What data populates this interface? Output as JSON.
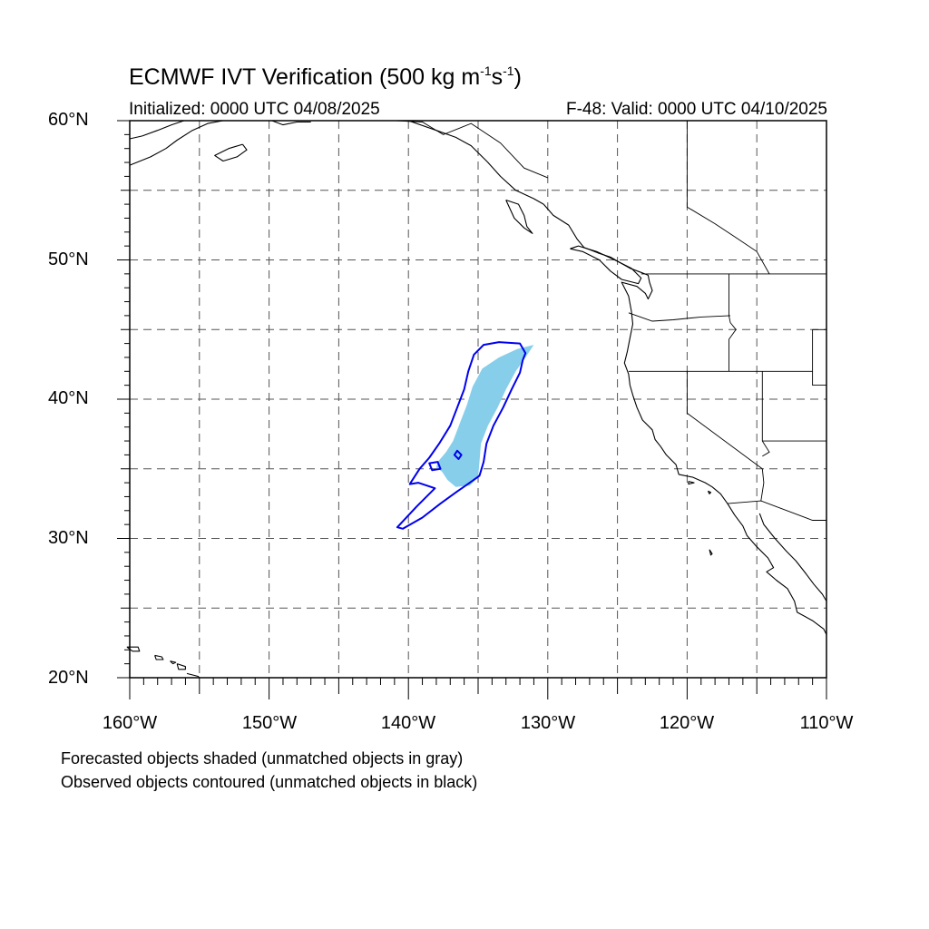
{
  "figure": {
    "title_main": "ECMWF IVT Verification (500 kg m",
    "title_exp1": "-1",
    "title_mid": "s",
    "title_exp2": "-1",
    "title_end": ")",
    "initialized": "Initialized: 0000 UTC 04/08/2025",
    "valid": "F-48: Valid: 0000 UTC 04/10/2025"
  },
  "map": {
    "lon_range": [
      -160,
      -110
    ],
    "lat_range": [
      20,
      60
    ],
    "grid_step_deg": 5,
    "grid_style": "dashed",
    "lat_labels": [
      "60°N",
      "50°N",
      "40°N",
      "30°N",
      "20°N"
    ],
    "lon_labels": [
      "160°W",
      "150°W",
      "140°W",
      "130°W",
      "120°W",
      "110°W"
    ],
    "forecast_fill_color": "#87ceeb",
    "observed_contour_color": "#0000ee",
    "coastline_color": "#000000"
  },
  "objects": {
    "forecast_shaded": [
      [
        [
          -131.0,
          43.9
        ],
        [
          -132.2,
          43.6
        ],
        [
          -133.5,
          43.0
        ],
        [
          -134.7,
          42.2
        ],
        [
          -135.4,
          40.9
        ],
        [
          -135.8,
          39.6
        ],
        [
          -136.3,
          38.3
        ],
        [
          -136.8,
          37.0
        ],
        [
          -137.3,
          36.2
        ],
        [
          -137.9,
          35.5
        ],
        [
          -138.0,
          35.1
        ],
        [
          -137.6,
          34.8
        ],
        [
          -137.2,
          34.2
        ],
        [
          -136.6,
          33.7
        ],
        [
          -135.6,
          33.8
        ],
        [
          -135.0,
          34.4
        ],
        [
          -134.9,
          35.5
        ],
        [
          -134.8,
          36.8
        ],
        [
          -134.3,
          38.1
        ],
        [
          -133.6,
          39.4
        ],
        [
          -133.0,
          40.7
        ],
        [
          -132.3,
          42.0
        ],
        [
          -131.6,
          43.0
        ],
        [
          -131.0,
          43.9
        ]
      ]
    ],
    "observed_contour": [
      [
        [
          -132.0,
          44.0
        ],
        [
          -133.5,
          44.1
        ],
        [
          -134.6,
          43.9
        ],
        [
          -135.3,
          43.2
        ],
        [
          -135.7,
          42.0
        ],
        [
          -136.0,
          40.7
        ],
        [
          -136.5,
          39.4
        ],
        [
          -137.0,
          38.1
        ],
        [
          -137.8,
          36.8
        ],
        [
          -138.5,
          35.8
        ],
        [
          -139.2,
          35.0
        ],
        [
          -139.9,
          33.9
        ],
        [
          -139.3,
          34.0
        ],
        [
          -138.1,
          33.6
        ],
        [
          -139.4,
          32.3
        ],
        [
          -140.8,
          30.8
        ],
        [
          -140.4,
          30.7
        ],
        [
          -139.0,
          31.5
        ],
        [
          -137.7,
          32.5
        ],
        [
          -136.6,
          33.3
        ],
        [
          -135.6,
          34.0
        ],
        [
          -134.9,
          34.5
        ],
        [
          -134.6,
          35.5
        ],
        [
          -134.4,
          36.8
        ],
        [
          -133.9,
          38.1
        ],
        [
          -133.2,
          39.4
        ],
        [
          -132.6,
          40.7
        ],
        [
          -132.0,
          41.9
        ],
        [
          -131.8,
          42.8
        ],
        [
          -131.6,
          43.3
        ],
        [
          -132.0,
          44.0
        ]
      ],
      [
        [
          -137.9,
          35.5
        ],
        [
          -137.7,
          35.0
        ],
        [
          -138.3,
          34.9
        ],
        [
          -138.5,
          35.4
        ],
        [
          -137.9,
          35.5
        ]
      ],
      [
        [
          -136.5,
          36.3
        ],
        [
          -136.2,
          36.0
        ],
        [
          -136.4,
          35.7
        ],
        [
          -136.7,
          36.0
        ],
        [
          -136.5,
          36.3
        ]
      ]
    ],
    "coastlines": [
      [
        [
          -160.0,
          56.8
        ],
        [
          -158.5,
          57.4
        ],
        [
          -157.4,
          58.0
        ],
        [
          -156.6,
          58.6
        ],
        [
          -155.5,
          59.3
        ],
        [
          -154.4,
          59.8
        ],
        [
          -153.3,
          60.0
        ]
      ],
      [
        [
          -160.0,
          58.7
        ],
        [
          -159.1,
          58.9
        ],
        [
          -158.0,
          59.3
        ],
        [
          -157.0,
          59.7
        ],
        [
          -156.1,
          60.0
        ]
      ],
      [
        [
          -151.9,
          58.3
        ],
        [
          -152.9,
          58.0
        ],
        [
          -153.9,
          57.5
        ],
        [
          -153.3,
          57.1
        ],
        [
          -152.3,
          57.4
        ],
        [
          -151.6,
          57.9
        ],
        [
          -151.9,
          58.3
        ]
      ],
      [
        [
          -149.8,
          60.0
        ],
        [
          -149.0,
          59.7
        ],
        [
          -148.0,
          59.9
        ],
        [
          -147.0,
          59.9
        ]
      ],
      [
        [
          -140.0,
          60.0
        ],
        [
          -138.0,
          59.3
        ],
        [
          -136.6,
          58.8
        ],
        [
          -135.5,
          58.2
        ],
        [
          -134.3,
          57.0
        ],
        [
          -133.4,
          56.0
        ],
        [
          -132.3,
          55.0
        ],
        [
          -131.0,
          54.4
        ],
        [
          -130.3,
          54.0
        ]
      ],
      [
        [
          -133.0,
          54.3
        ],
        [
          -132.1,
          54.0
        ],
        [
          -131.7,
          53.2
        ],
        [
          -131.5,
          52.4
        ],
        [
          -131.1,
          51.9
        ],
        [
          -131.7,
          52.3
        ],
        [
          -132.4,
          53.0
        ],
        [
          -133.0,
          54.3
        ]
      ],
      [
        [
          -130.3,
          54.0
        ],
        [
          -129.6,
          53.2
        ],
        [
          -128.5,
          52.5
        ],
        [
          -127.9,
          51.5
        ],
        [
          -127.4,
          50.9
        ],
        [
          -126.4,
          50.5
        ],
        [
          -125.5,
          50.2
        ],
        [
          -124.8,
          49.8
        ],
        [
          -124.1,
          49.4
        ],
        [
          -123.3,
          49.1
        ],
        [
          -122.8,
          48.9
        ],
        [
          -122.7,
          48.4
        ],
        [
          -122.5,
          47.8
        ],
        [
          -122.8,
          47.2
        ],
        [
          -123.0,
          47.6
        ],
        [
          -123.6,
          48.1
        ],
        [
          -124.7,
          48.4
        ],
        [
          -124.2,
          47.4
        ],
        [
          -124.0,
          46.3
        ],
        [
          -123.9,
          45.4
        ],
        [
          -124.1,
          44.4
        ],
        [
          -124.3,
          43.4
        ],
        [
          -124.5,
          42.6
        ],
        [
          -124.2,
          41.8
        ],
        [
          -124.1,
          41.0
        ],
        [
          -123.9,
          40.3
        ],
        [
          -123.6,
          39.4
        ],
        [
          -123.2,
          38.5
        ],
        [
          -122.5,
          37.8
        ],
        [
          -122.3,
          37.1
        ],
        [
          -121.9,
          36.6
        ],
        [
          -121.5,
          36.0
        ],
        [
          -120.8,
          35.3
        ],
        [
          -120.6,
          34.6
        ],
        [
          -119.6,
          34.4
        ],
        [
          -118.7,
          34.0
        ],
        [
          -118.2,
          33.7
        ],
        [
          -117.6,
          33.2
        ],
        [
          -117.1,
          32.5
        ],
        [
          -116.6,
          31.7
        ],
        [
          -116.0,
          30.9
        ],
        [
          -115.7,
          30.2
        ],
        [
          -115.0,
          29.4
        ],
        [
          -114.2,
          28.6
        ],
        [
          -113.8,
          27.9
        ],
        [
          -114.3,
          27.6
        ],
        [
          -113.6,
          27.0
        ],
        [
          -112.8,
          26.4
        ],
        [
          -112.3,
          25.5
        ],
        [
          -112.1,
          24.7
        ],
        [
          -111.0,
          24.1
        ],
        [
          -110.2,
          23.5
        ],
        [
          -110.0,
          23.1
        ]
      ],
      [
        [
          -128.4,
          50.8
        ],
        [
          -127.5,
          50.6
        ],
        [
          -126.3,
          50.0
        ],
        [
          -125.5,
          49.2
        ],
        [
          -124.7,
          48.6
        ],
        [
          -123.5,
          48.3
        ],
        [
          -123.3,
          48.7
        ],
        [
          -124.0,
          49.4
        ],
        [
          -125.2,
          50.0
        ],
        [
          -126.5,
          50.6
        ],
        [
          -127.8,
          51.0
        ],
        [
          -128.4,
          50.8
        ]
      ],
      [
        [
          -114.8,
          31.8
        ],
        [
          -114.5,
          31.0
        ],
        [
          -113.7,
          30.0
        ],
        [
          -112.9,
          29.1
        ],
        [
          -112.2,
          28.4
        ],
        [
          -111.5,
          27.5
        ],
        [
          -110.9,
          26.7
        ],
        [
          -110.3,
          26.0
        ],
        [
          -110.0,
          25.5
        ]
      ],
      [
        [
          -119.9,
          34.1
        ],
        [
          -119.5,
          34.0
        ],
        [
          -119.9,
          33.9
        ],
        [
          -119.9,
          34.1
        ]
      ],
      [
        [
          -118.5,
          33.4
        ],
        [
          -118.3,
          33.3
        ],
        [
          -118.4,
          33.2
        ],
        [
          -118.5,
          33.4
        ]
      ],
      [
        [
          -118.4,
          29.2
        ],
        [
          -118.2,
          28.9
        ],
        [
          -118.3,
          28.8
        ],
        [
          -118.4,
          29.2
        ]
      ],
      [
        [
          -160.2,
          22.2
        ],
        [
          -159.4,
          22.2
        ],
        [
          -159.3,
          21.9
        ],
        [
          -159.8,
          21.9
        ],
        [
          -160.2,
          22.2
        ]
      ],
      [
        [
          -158.2,
          21.6
        ],
        [
          -157.7,
          21.5
        ],
        [
          -157.6,
          21.3
        ],
        [
          -158.1,
          21.3
        ],
        [
          -158.2,
          21.6
        ]
      ],
      [
        [
          -157.1,
          21.2
        ],
        [
          -156.7,
          21.1
        ],
        [
          -156.9,
          21.0
        ],
        [
          -157.1,
          21.2
        ]
      ],
      [
        [
          -156.6,
          21.0
        ],
        [
          -156.0,
          20.8
        ],
        [
          -156.0,
          20.6
        ],
        [
          -156.5,
          20.6
        ],
        [
          -156.6,
          21.0
        ]
      ],
      [
        [
          -155.9,
          20.3
        ],
        [
          -155.1,
          20.1
        ],
        [
          -155.0,
          20.0
        ]
      ]
    ],
    "boundaries": [
      [
        [
          -140.9,
          60.0
        ],
        [
          -139.0,
          59.9
        ],
        [
          -137.5,
          59.0
        ],
        [
          -135.5,
          59.8
        ],
        [
          -133.4,
          58.4
        ],
        [
          -131.7,
          56.6
        ],
        [
          -130.0,
          55.9
        ]
      ],
      [
        [
          -123.3,
          49.0
        ],
        [
          -110.0,
          49.0
        ]
      ],
      [
        [
          -117.0,
          49.0
        ],
        [
          -117.0,
          46.0
        ],
        [
          -116.9,
          45.5
        ],
        [
          -116.5,
          45.0
        ],
        [
          -117.0,
          44.3
        ],
        [
          -117.0,
          42.0
        ]
      ],
      [
        [
          -124.2,
          46.2
        ],
        [
          -122.5,
          45.6
        ],
        [
          -121.0,
          45.7
        ],
        [
          -119.0,
          45.9
        ],
        [
          -116.9,
          46.0
        ]
      ],
      [
        [
          -124.2,
          42.0
        ],
        [
          -111.0,
          42.0
        ]
      ],
      [
        [
          -120.0,
          42.0
        ],
        [
          -120.0,
          39.0
        ],
        [
          -114.6,
          35.0
        ],
        [
          -114.5,
          34.0
        ],
        [
          -114.7,
          32.7
        ]
      ],
      [
        [
          -114.6,
          42.0
        ],
        [
          -114.6,
          37.0
        ],
        [
          -114.1,
          36.2
        ],
        [
          -114.6,
          35.9
        ]
      ],
      [
        [
          -114.6,
          37.0
        ],
        [
          -110.0,
          37.0
        ]
      ],
      [
        [
          -117.1,
          32.5
        ],
        [
          -114.7,
          32.7
        ],
        [
          -111.0,
          31.3
        ],
        [
          -110.0,
          31.3
        ]
      ],
      [
        [
          -111.0,
          45.0
        ],
        [
          -110.0,
          45.0
        ]
      ],
      [
        [
          -111.0,
          45.0
        ],
        [
          -111.0,
          41.0
        ],
        [
          -110.0,
          41.0
        ]
      ],
      [
        [
          -120.0,
          60.0
        ],
        [
          -120.0,
          53.8
        ],
        [
          -118.0,
          52.6
        ],
        [
          -116.5,
          51.6
        ],
        [
          -115.0,
          50.6
        ],
        [
          -114.1,
          49.0
        ]
      ]
    ]
  },
  "notes": {
    "line1": "Forecasted objects shaded (unmatched objects in gray)",
    "line2": "Observed objects contoured (unmatched objects in black)"
  }
}
